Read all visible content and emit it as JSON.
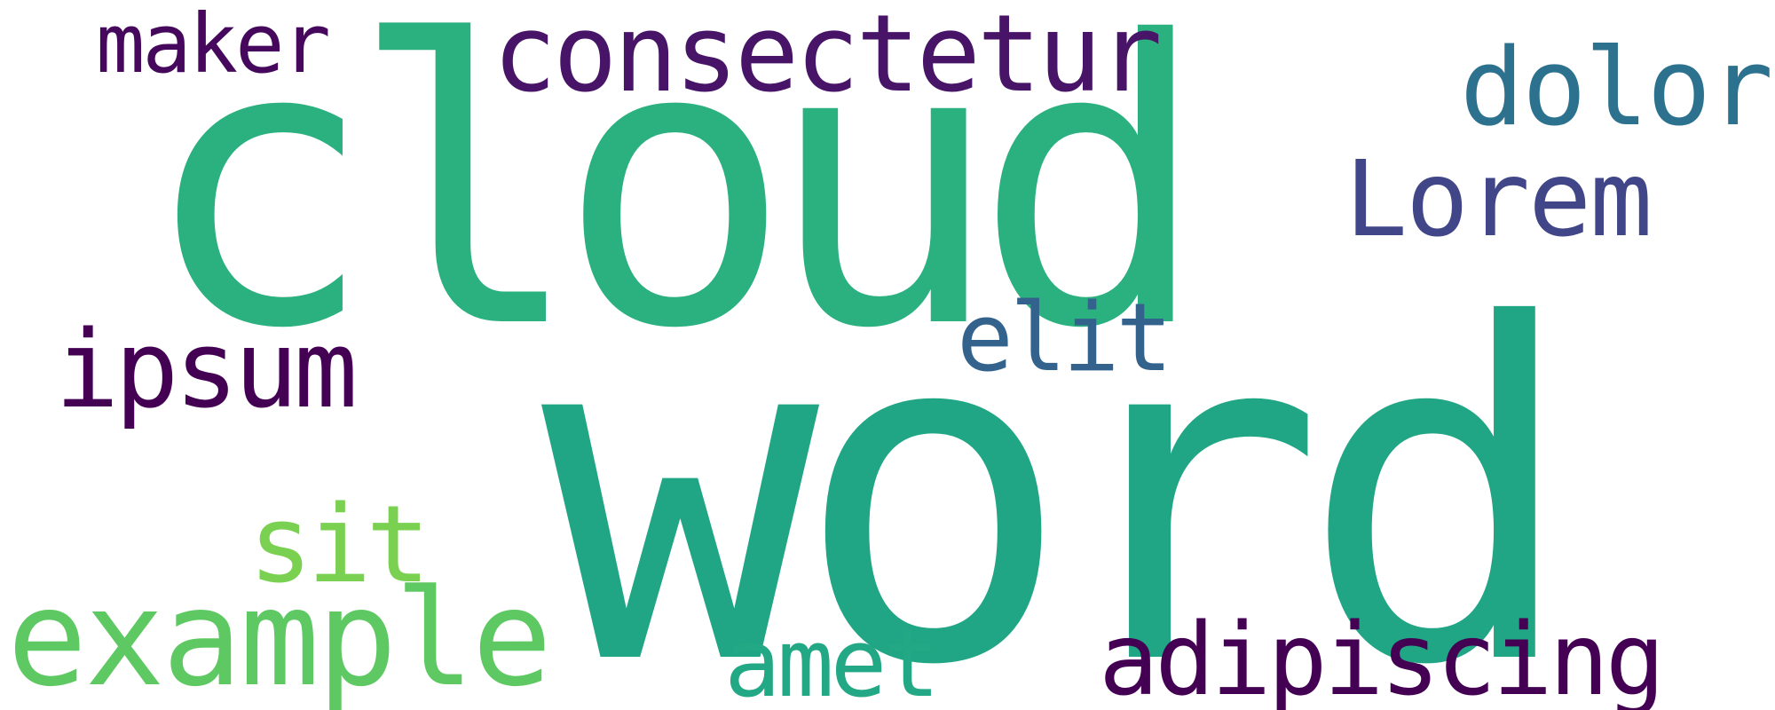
{
  "words": {
    "cloud": {
      "text": "cloud",
      "color": "#2bb07f"
    },
    "word": {
      "text": "word",
      "color": "#21a685"
    },
    "consectetur": {
      "text": "consectetur",
      "color": "#481467"
    },
    "maker": {
      "text": "maker",
      "color": "#46085c"
    },
    "dolor": {
      "text": "dolor",
      "color": "#2c728e"
    },
    "lorem": {
      "text": "Lorem",
      "color": "#404688"
    },
    "ipsum": {
      "text": "ipsum",
      "color": "#440154"
    },
    "elit": {
      "text": "elit",
      "color": "#33638d"
    },
    "sit": {
      "text": "sit",
      "color": "#7ad151"
    },
    "example": {
      "text": "example",
      "color": "#5ec962"
    },
    "amet": {
      "text": "amet",
      "color": "#22a884"
    },
    "adipiscing": {
      "text": "adipiscing",
      "color": "#440154"
    }
  }
}
